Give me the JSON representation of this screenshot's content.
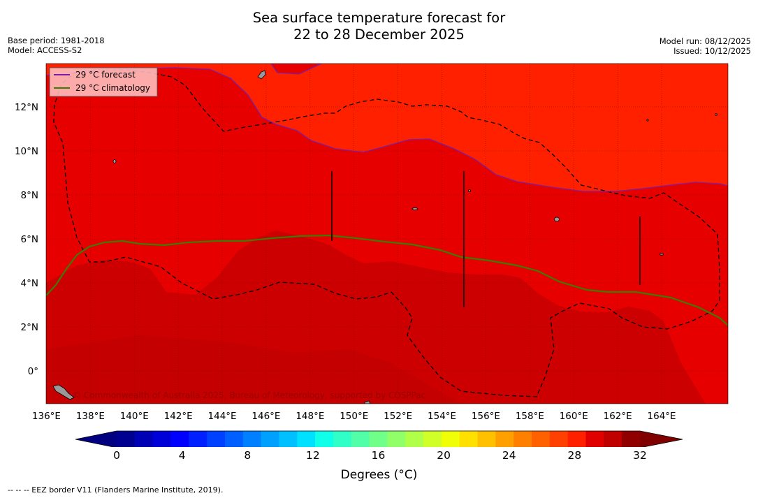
{
  "header": {
    "title_line1": "Sea surface temperature forecast for",
    "title_line2": "22 to 28 December 2025",
    "base_period": "Base period: 1981-2018",
    "model": "Model: ACCESS-S2",
    "model_run": "Model run: 08/12/2025",
    "issued": "Issued: 10/12/2025"
  },
  "map": {
    "lon_labels": [
      "136°E",
      "138°E",
      "140°E",
      "142°E",
      "144°E",
      "146°E",
      "148°E",
      "150°E",
      "152°E",
      "154°E",
      "156°E",
      "158°E",
      "160°E",
      "162°E",
      "164°E"
    ],
    "lat_labels": [
      "12°N",
      "10°N",
      "8°N",
      "6°N",
      "4°N",
      "2°N",
      "0°"
    ],
    "copyright": "© Commonwealth of Australia 2025, Bureau of Meteorology, supported by COSPPac",
    "zone_colors": {
      "z28_29": "#ff2000",
      "z29_30": "#e60000",
      "z30_31": "#cc0000",
      "z31_32": "#c40000",
      "z32": "#b00000"
    },
    "legend": [
      {
        "label": "29 °C  forecast",
        "color": "#7a1fa2"
      },
      {
        "label": "29 °C  climatology",
        "color": "#3a7d00"
      }
    ]
  },
  "colorbar": {
    "ticks": [
      "0",
      "4",
      "8",
      "12",
      "16",
      "20",
      "24",
      "28",
      "32"
    ],
    "title": "Degrees (°C)",
    "colors": [
      "#000090",
      "#0000b4",
      "#0000d8",
      "#0000ff",
      "#0020ff",
      "#0040ff",
      "#0060ff",
      "#0080ff",
      "#00a0ff",
      "#00c0ff",
      "#00e0ff",
      "#10ffe8",
      "#30ffc8",
      "#50ffa8",
      "#70ff88",
      "#90ff68",
      "#b0ff48",
      "#d0ff28",
      "#f0ff08",
      "#ffe000",
      "#ffc000",
      "#ffa000",
      "#ff8000",
      "#ff6000",
      "#ff4000",
      "#ff2000",
      "#e00000",
      "#c00000",
      "#900000"
    ],
    "under_color": "#000080",
    "over_color": "#800000"
  },
  "footnote": "--  --  -- EEZ border V11 (Flanders Marine Institute, 2019)."
}
